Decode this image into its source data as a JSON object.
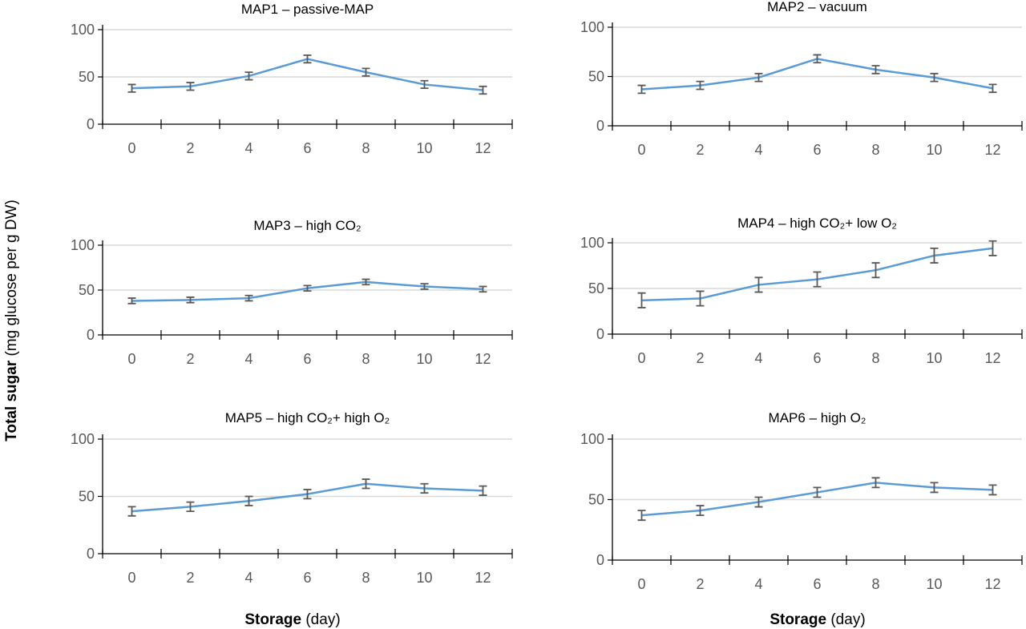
{
  "chart_data": [
    {
      "type": "line",
      "title": "MAP1 – passive-MAP",
      "categories": [
        "0",
        "2",
        "4",
        "6",
        "8",
        "10",
        "12"
      ],
      "values": [
        38,
        40,
        51,
        69,
        55,
        42,
        36
      ],
      "error": [
        4,
        4,
        4,
        4,
        4,
        4,
        4
      ],
      "yticks": [
        "0",
        "50",
        "100"
      ],
      "ylim": [
        0,
        100
      ]
    },
    {
      "type": "line",
      "title": "MAP2 – vacuum",
      "categories": [
        "0",
        "2",
        "4",
        "6",
        "8",
        "10",
        "12"
      ],
      "values": [
        37,
        41,
        49,
        68,
        57,
        49,
        38
      ],
      "error": [
        4,
        4,
        4,
        4,
        4,
        4,
        4
      ],
      "yticks": [
        "0",
        "50",
        "100"
      ],
      "ylim": [
        0,
        100
      ]
    },
    {
      "type": "line",
      "title": "MAP3 – high CO₂",
      "categories": [
        "0",
        "2",
        "4",
        "6",
        "8",
        "10",
        "12"
      ],
      "values": [
        38,
        39,
        41,
        52,
        59,
        54,
        51
      ],
      "error": [
        3,
        3,
        3,
        3,
        3,
        3,
        3
      ],
      "yticks": [
        "0",
        "50",
        "100"
      ],
      "ylim": [
        0,
        100
      ]
    },
    {
      "type": "line",
      "title": "MAP4 – high CO₂+ low O₂",
      "categories": [
        "0",
        "2",
        "4",
        "6",
        "8",
        "10",
        "12"
      ],
      "values": [
        37,
        39,
        54,
        60,
        70,
        86,
        94
      ],
      "error": [
        8,
        8,
        8,
        8,
        8,
        8,
        8
      ],
      "yticks": [
        "0",
        "50",
        "100"
      ],
      "ylim": [
        0,
        100
      ]
    },
    {
      "type": "line",
      "title": "MAP5 – high CO₂+ high O₂",
      "categories": [
        "0",
        "2",
        "4",
        "6",
        "8",
        "10",
        "12"
      ],
      "values": [
        37,
        41,
        46,
        52,
        61,
        57,
        55
      ],
      "error": [
        4,
        4,
        4,
        4,
        4,
        4,
        4
      ],
      "yticks": [
        "0",
        "50",
        "100"
      ],
      "ylim": [
        0,
        100
      ]
    },
    {
      "type": "line",
      "title": "MAP6 – high O₂",
      "categories": [
        "0",
        "2",
        "4",
        "6",
        "8",
        "10",
        "12"
      ],
      "values": [
        37,
        41,
        48,
        56,
        64,
        60,
        58
      ],
      "error": [
        4,
        4,
        4,
        4,
        4,
        4,
        4
      ],
      "yticks": [
        "0",
        "50",
        "100"
      ],
      "ylim": [
        0,
        100
      ]
    }
  ],
  "ylabel": {
    "bold": "Total sugar",
    "rest": " (mg glucose per g DW)"
  },
  "xlabel": {
    "bold": "Storage",
    "rest": " (day)"
  },
  "colors": {
    "line": "#5b9bd5",
    "error": "#595959",
    "grid": "#d9d9d9",
    "axis": "#000000"
  }
}
